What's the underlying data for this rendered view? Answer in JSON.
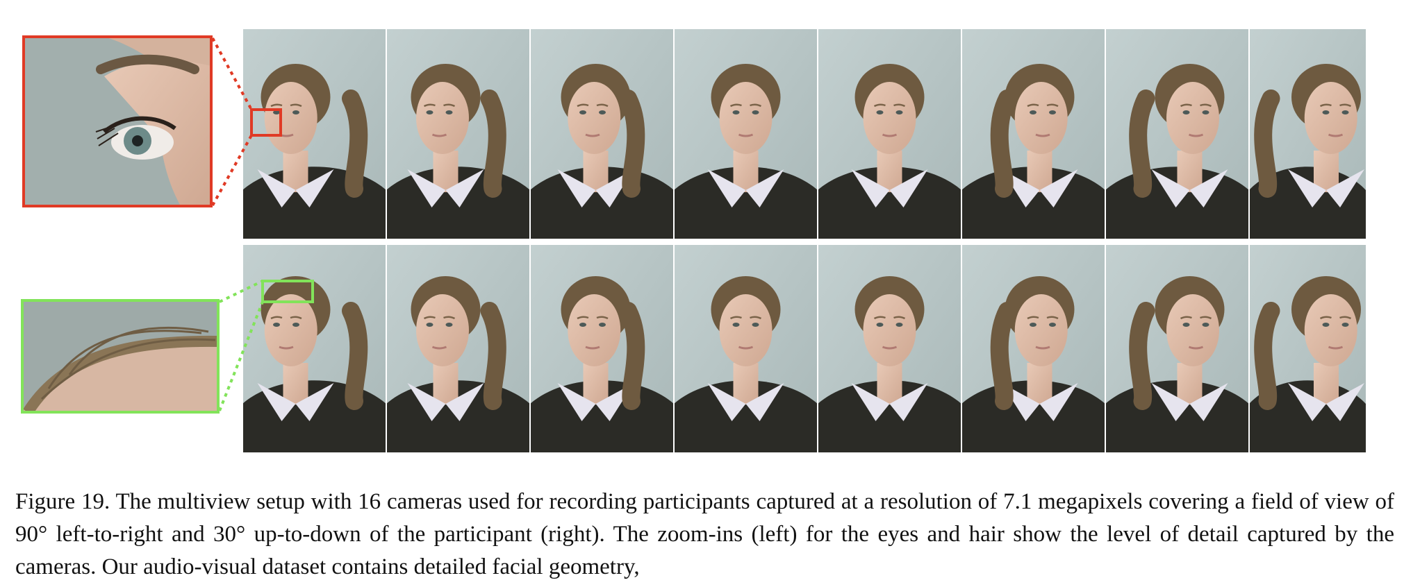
{
  "figure": {
    "caption": "Figure 19. The multiview setup with 16 cameras used for recording participants captured at a resolution of 7.1 megapixels covering a field of view of 90° left-to-right and 30° up-to-down of the participant (right). The zoom-ins (left) for the eyes and hair show the level of detail captured by the cameras. Our audio-visual dataset contains detailed facial geometry,",
    "camera_count": 16,
    "rows": [
      {
        "name": "top-row",
        "views": 8,
        "head_yaw_deg": [
          -45,
          -30,
          -15,
          0,
          0,
          15,
          30,
          45
        ]
      },
      {
        "name": "bottom-row",
        "views": 8,
        "head_yaw_deg": [
          -45,
          -30,
          -15,
          0,
          0,
          15,
          30,
          45
        ]
      }
    ],
    "zoom_insets": [
      {
        "name": "eye-zoom",
        "border_color": "#e03a25",
        "subject": "eye"
      },
      {
        "name": "hair-zoom",
        "border_color": "#82e35a",
        "subject": "hair"
      }
    ],
    "colors": {
      "background": "#b9c7c7",
      "sweater": "#2b2b26",
      "collar": "#e6e4ee",
      "hair": "#6e5a40",
      "skin": "#dcb9a6"
    }
  }
}
